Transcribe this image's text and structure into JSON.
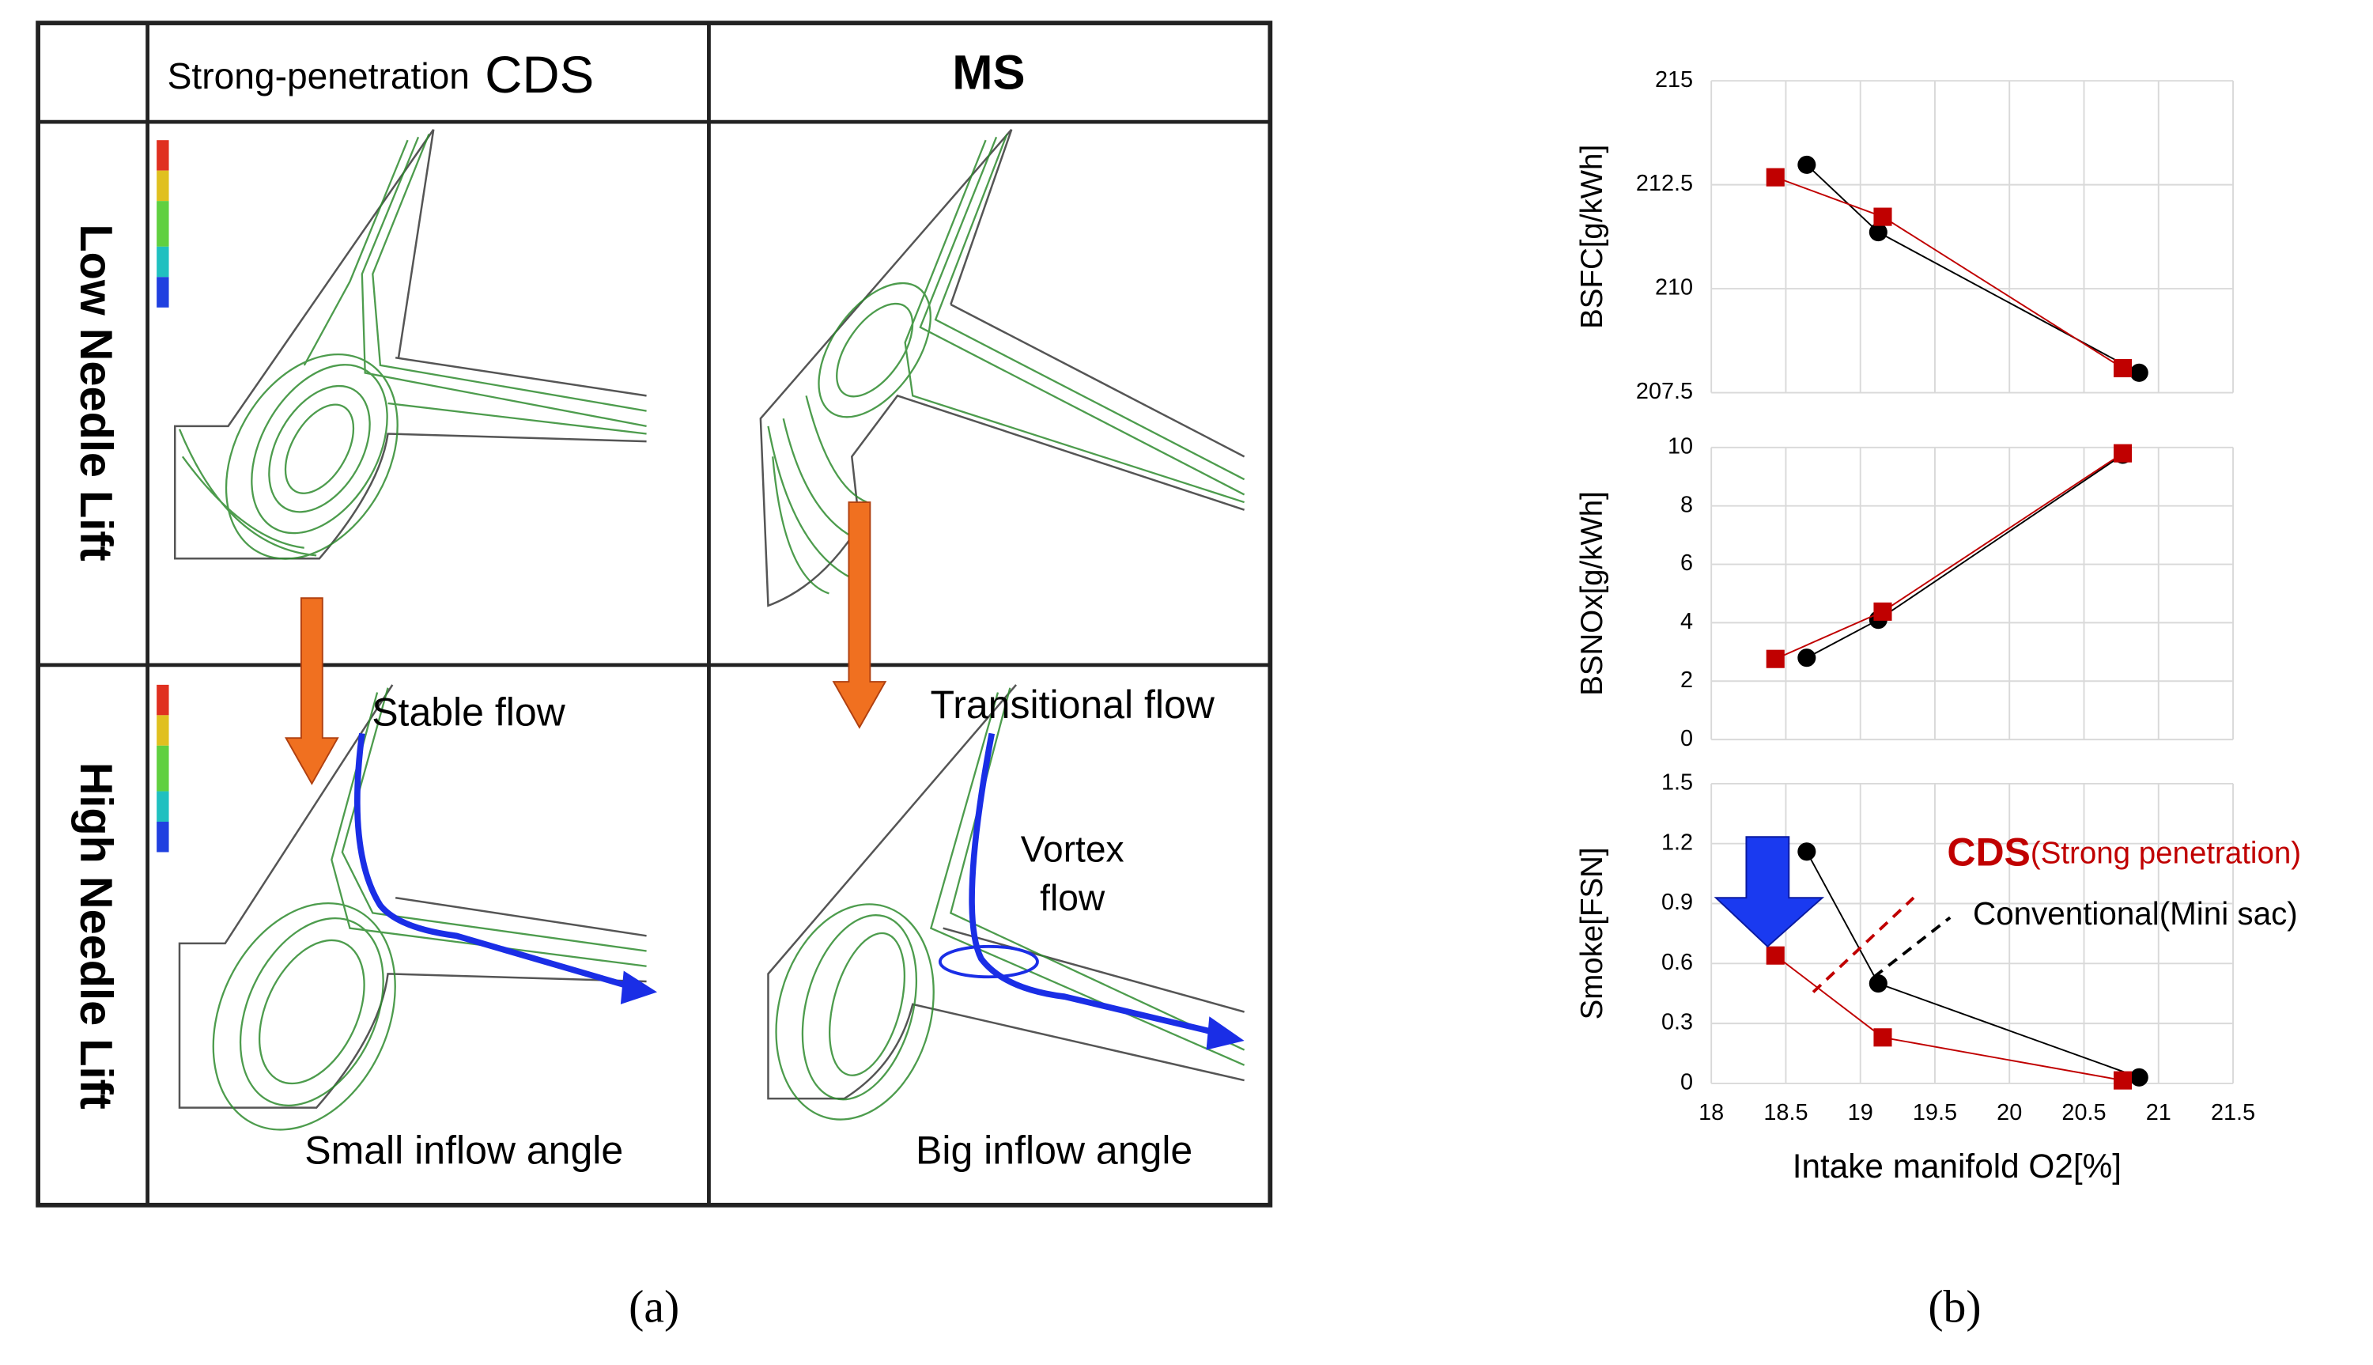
{
  "panel_a": {
    "header": {
      "cds_prefix": "Strong-penetration",
      "cds": "CDS",
      "ms": "MS"
    },
    "rows": [
      "Low Needle Lift",
      "High Needle Lift"
    ],
    "labels": {
      "stable": "Stable flow",
      "transitional": "Transitional flow",
      "vortex_1": "Vortex",
      "vortex_2": "flow",
      "small": "Small inflow angle",
      "big": "Big inflow angle"
    },
    "caption": "(a)"
  },
  "panel_b": {
    "caption": "(b)"
  },
  "chart_data": [
    {
      "type": "scatter",
      "ylabel": "BSFC[g/kWh]",
      "xlim": [
        18,
        21.5
      ],
      "xticks": [
        18,
        18.5,
        19,
        19.5,
        20,
        20.5,
        21,
        21.5
      ],
      "ylim": [
        207.5,
        215
      ],
      "yticks": [
        207.5,
        210,
        212.5,
        215
      ],
      "grid": true,
      "series": [
        {
          "color": "#c00000",
          "marker": "square",
          "x": [
            18.43,
            19.15,
            20.76
          ],
          "values": [
            212.68,
            211.73,
            208.09
          ]
        },
        {
          "color": "#000000",
          "marker": "circle",
          "x": [
            18.64,
            19.12,
            20.87
          ],
          "values": [
            212.98,
            211.36,
            207.98
          ]
        }
      ]
    },
    {
      "type": "scatter",
      "ylabel": "BSNOx[g/kWh]",
      "xlim": [
        18,
        21.5
      ],
      "xticks": [
        18,
        18.5,
        19,
        19.5,
        20,
        20.5,
        21,
        21.5
      ],
      "ylim": [
        0,
        10
      ],
      "yticks": [
        0,
        2,
        4,
        6,
        8,
        10
      ],
      "grid": true,
      "series": [
        {
          "color": "#c00000",
          "marker": "square",
          "x": [
            18.43,
            19.15,
            20.76
          ],
          "values": [
            2.76,
            4.38,
            9.8
          ]
        },
        {
          "color": "#000000",
          "marker": "circle",
          "x": [
            18.64,
            19.12,
            20.76
          ],
          "values": [
            2.8,
            4.1,
            9.75
          ]
        }
      ]
    },
    {
      "type": "scatter",
      "ylabel": "Smoke[FSN]",
      "xlabel": "Intake manifold O2[%]",
      "xlim": [
        18,
        21.5
      ],
      "xticks": [
        18,
        18.5,
        19,
        19.5,
        20,
        20.5,
        21,
        21.5
      ],
      "ylim": [
        0,
        1.5
      ],
      "yticks": [
        0,
        0.3,
        0.6,
        0.9,
        1.2,
        1.5
      ],
      "grid": true,
      "annotations": {
        "cds": "CDS",
        "cds_note": "(Strong penetration)",
        "conventional": "Conventional(Mini sac)"
      },
      "series": [
        {
          "color": "#c00000",
          "marker": "square",
          "x": [
            18.43,
            19.15,
            20.76
          ],
          "values": [
            0.64,
            0.23,
            0.015
          ]
        },
        {
          "color": "#000000",
          "marker": "circle",
          "x": [
            18.64,
            19.12,
            20.87
          ],
          "values": [
            1.16,
            0.5,
            0.03
          ]
        }
      ]
    }
  ]
}
